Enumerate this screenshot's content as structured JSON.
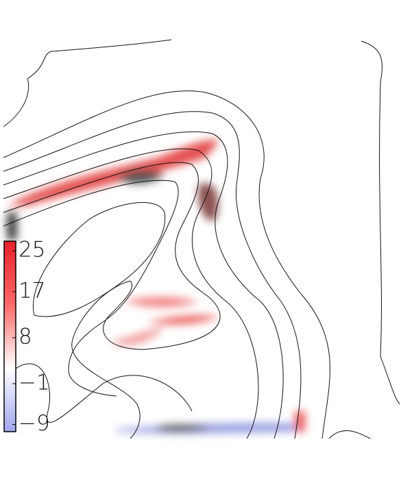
{
  "chart_data": {
    "type": "heatmap",
    "colorbar": {
      "clim": [
        -10.4,
        26.9
      ],
      "ticks": [
        25,
        17,
        8,
        {
          "value": -1,
          "label": "−1"
        },
        {
          "value": -9,
          "label": "−9"
        }
      ],
      "colors": [
        "#9fa6ee",
        "#ffffff",
        "#ff6a6a",
        "#e8202a"
      ]
    }
  }
}
